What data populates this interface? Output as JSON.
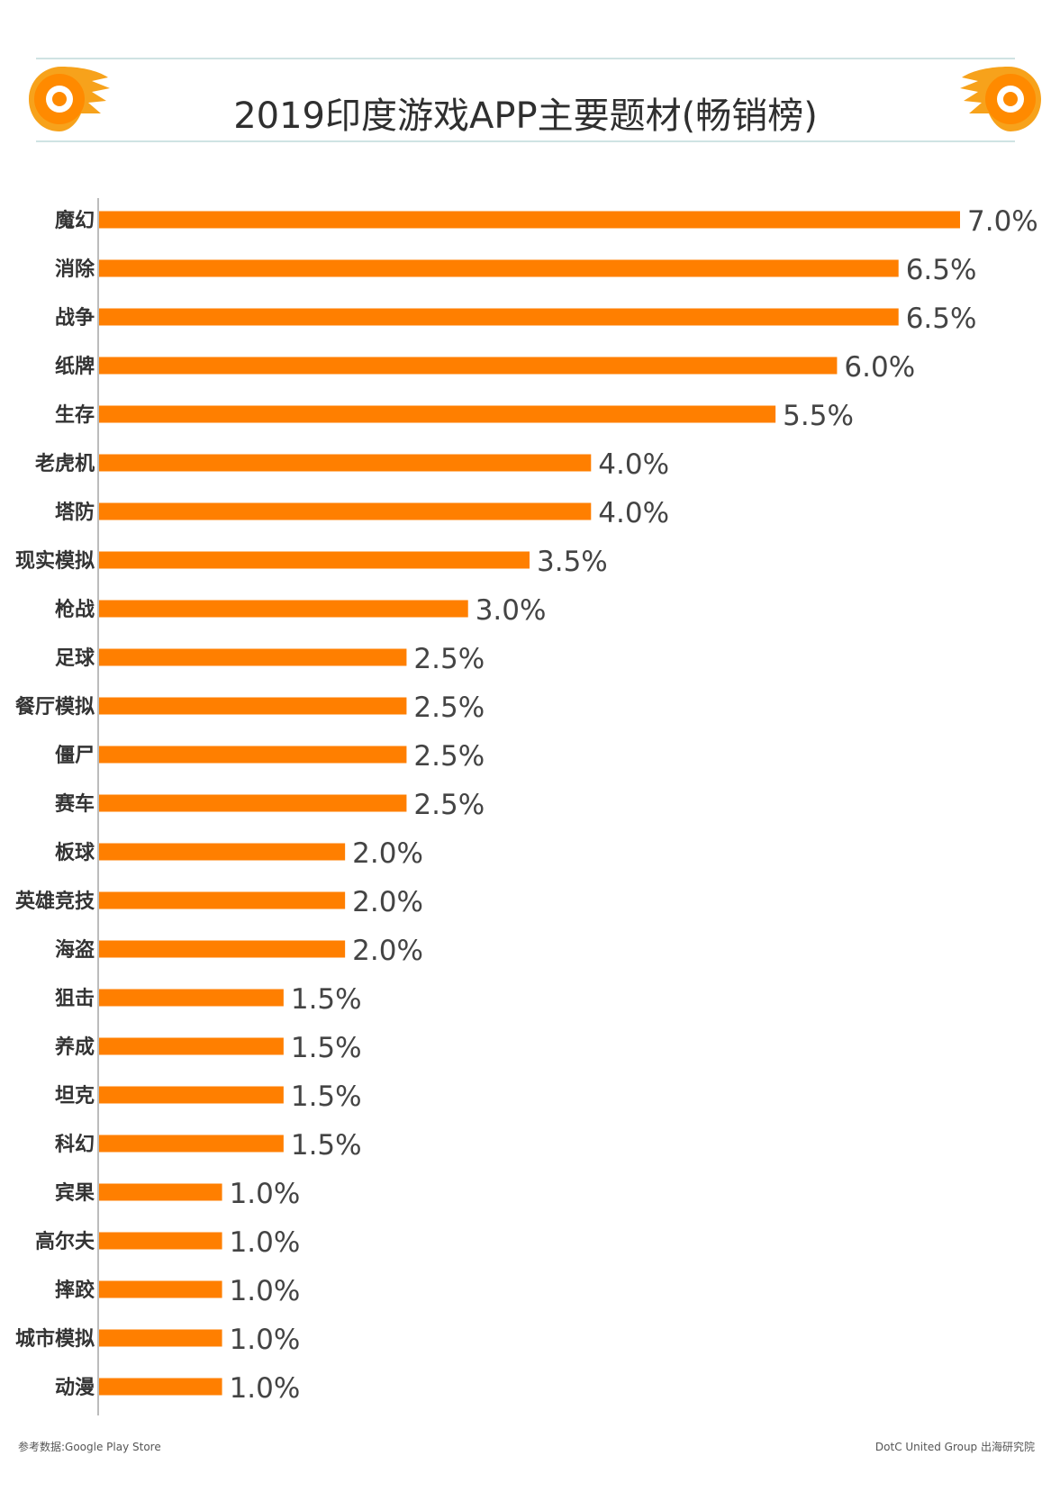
{
  "header": {
    "title": "2019印度游戏APP主要题材(畅销榜)"
  },
  "chart_data": {
    "type": "bar",
    "orientation": "horizontal",
    "title": "2019印度游戏APP主要题材(畅销榜)",
    "categories": [
      "魔幻",
      "消除",
      "战争",
      "纸牌",
      "生存",
      "老虎机",
      "塔防",
      "现实模拟",
      "枪战",
      "足球",
      "餐厅模拟",
      "僵尸",
      "赛车",
      "板球",
      "英雄竞技",
      "海盗",
      "狙击",
      "养成",
      "坦克",
      "科幻",
      "宾果",
      "高尔夫",
      "摔跤",
      "城市模拟",
      "动漫"
    ],
    "values": [
      7.0,
      6.5,
      6.5,
      6.0,
      5.5,
      4.0,
      4.0,
      3.5,
      3.0,
      2.5,
      2.5,
      2.5,
      2.5,
      2.0,
      2.0,
      2.0,
      1.5,
      1.5,
      1.5,
      1.5,
      1.0,
      1.0,
      1.0,
      1.0,
      1.0
    ],
    "value_labels": [
      "7.0%",
      "6.5%",
      "6.5%",
      "6.0%",
      "5.5%",
      "4.0%",
      "4.0%",
      "3.5%",
      "3.0%",
      "2.5%",
      "2.5%",
      "2.5%",
      "2.5%",
      "2.0%",
      "2.0%",
      "2.0%",
      "1.5%",
      "1.5%",
      "1.5%",
      "1.5%",
      "1.0%",
      "1.0%",
      "1.0%",
      "1.0%",
      "1.0%"
    ],
    "unit": "%",
    "xlim": [
      0,
      7.0
    ],
    "grid": false,
    "bar_color": "#ff7f00"
  },
  "footer": {
    "source": "参考数据:Google Play Store",
    "credit": "DotC United Group 出海研究院"
  },
  "colors": {
    "accent": "#ff7f00",
    "rule": "#cfe3e3",
    "axis": "#bcbcbc"
  },
  "icons": {
    "left": "flame-eye-logo-icon",
    "right": "flame-eye-logo-icon"
  }
}
